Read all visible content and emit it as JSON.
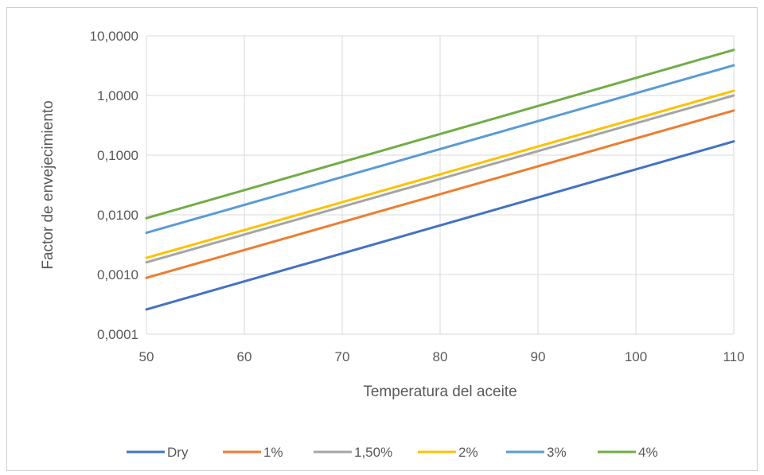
{
  "chart_data": {
    "type": "line",
    "xlabel": "Temperatura del aceite",
    "ylabel": "Factor de envejecimiento",
    "y_scale": "log",
    "xlim": [
      50,
      110
    ],
    "ylim": [
      0.0001,
      10
    ],
    "x_ticks": [
      "50",
      "60",
      "70",
      "80",
      "90",
      "100",
      "110"
    ],
    "y_ticks": [
      {
        "value": 0.0001,
        "label": "0,0001"
      },
      {
        "value": 0.001,
        "label": "0,0010"
      },
      {
        "value": 0.01,
        "label": "0,0100"
      },
      {
        "value": 0.1,
        "label": "0,1000"
      },
      {
        "value": 1,
        "label": "1,0000"
      },
      {
        "value": 10,
        "label": "10,0000"
      }
    ],
    "grid": true,
    "legend_position": "bottom",
    "series": [
      {
        "name": "Dry",
        "color": "#4472c4",
        "x": [
          50,
          110
        ],
        "y": [
          0.00026,
          0.17
        ]
      },
      {
        "name": "1%",
        "color": "#ed7d31",
        "x": [
          50,
          110
        ],
        "y": [
          0.00088,
          0.56
        ]
      },
      {
        "name": "1,50%",
        "color": "#a5a5a5",
        "x": [
          50,
          110
        ],
        "y": [
          0.0016,
          1.0
        ]
      },
      {
        "name": "2%",
        "color": "#ffc000",
        "x": [
          50,
          110
        ],
        "y": [
          0.0019,
          1.2
        ]
      },
      {
        "name": "3%",
        "color": "#5b9bd5",
        "x": [
          50,
          110
        ],
        "y": [
          0.005,
          3.2
        ]
      },
      {
        "name": "4%",
        "color": "#70ad47",
        "x": [
          50,
          110
        ],
        "y": [
          0.0088,
          5.8
        ]
      }
    ]
  }
}
